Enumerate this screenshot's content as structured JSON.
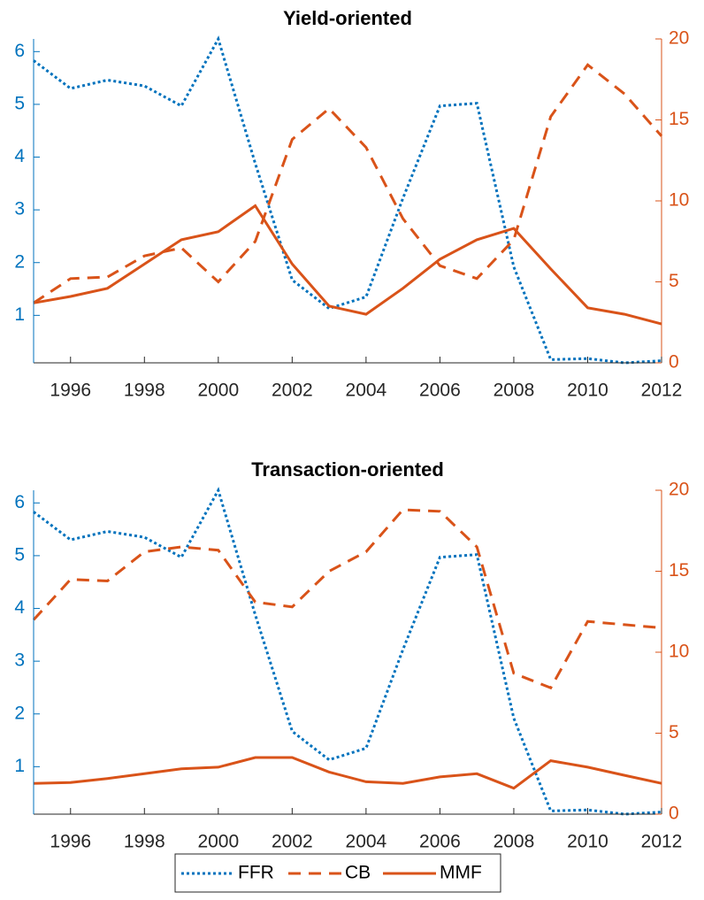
{
  "chart_data": [
    {
      "type": "line",
      "title": "Yield-oriented",
      "x": [
        1995,
        1996,
        1997,
        1998,
        1999,
        2000,
        2001,
        2002,
        2003,
        2004,
        2005,
        2006,
        2007,
        2008,
        2009,
        2010,
        2011,
        2012
      ],
      "xlim": [
        1995,
        2012
      ],
      "xticks": [
        1996,
        1998,
        2000,
        2002,
        2004,
        2006,
        2008,
        2010,
        2012
      ],
      "ylim": [
        0.1,
        6.24
      ],
      "yticks": [
        1,
        2,
        3,
        4,
        5,
        6
      ],
      "ycolor": "#0072BD",
      "y2lim": [
        0,
        20
      ],
      "y2ticks": [
        0,
        5,
        10,
        15,
        20
      ],
      "y2color": "#D95319",
      "series": [
        {
          "name": "FFR",
          "color": "#0072BD",
          "style": "dotted",
          "axis": "y",
          "values": [
            5.83,
            5.3,
            5.46,
            5.35,
            4.97,
            6.24,
            3.88,
            1.67,
            1.13,
            1.35,
            3.22,
            4.97,
            5.02,
            1.92,
            0.16,
            0.18,
            0.1,
            0.14
          ]
        },
        {
          "name": "CB",
          "color": "#D95319",
          "style": "dashed",
          "axis": "y2",
          "values": [
            3.7,
            5.2,
            5.3,
            6.6,
            7.1,
            5.0,
            7.5,
            13.8,
            15.7,
            13.3,
            8.9,
            6.0,
            5.2,
            7.6,
            15.2,
            18.4,
            16.6,
            14.0
          ]
        },
        {
          "name": "MMF",
          "color": "#D95319",
          "style": "solid",
          "axis": "y2",
          "values": [
            3.7,
            4.1,
            4.6,
            6.1,
            7.6,
            8.1,
            9.7,
            6.1,
            3.5,
            3.0,
            4.6,
            6.4,
            7.6,
            8.3,
            5.8,
            3.4,
            3.0,
            2.4
          ]
        }
      ]
    },
    {
      "type": "line",
      "title": "Transaction-oriented",
      "x": [
        1995,
        1996,
        1997,
        1998,
        1999,
        2000,
        2001,
        2002,
        2003,
        2004,
        2005,
        2006,
        2007,
        2008,
        2009,
        2010,
        2011,
        2012
      ],
      "xlim": [
        1995,
        2012
      ],
      "xticks": [
        1996,
        1998,
        2000,
        2002,
        2004,
        2006,
        2008,
        2010,
        2012
      ],
      "ylim": [
        0.1,
        6.24
      ],
      "yticks": [
        1,
        2,
        3,
        4,
        5,
        6
      ],
      "ycolor": "#0072BD",
      "y2lim": [
        0,
        20
      ],
      "y2ticks": [
        0,
        5,
        10,
        15,
        20
      ],
      "y2color": "#D95319",
      "series": [
        {
          "color": "#0072BD",
          "style": "dotted",
          "axis": "y",
          "values": [
            5.83,
            5.3,
            5.46,
            5.35,
            4.97,
            6.24,
            3.88,
            1.67,
            1.13,
            1.35,
            3.22,
            4.97,
            5.02,
            1.92,
            0.16,
            0.18,
            0.1,
            0.14
          ]
        },
        {
          "color": "#D95319",
          "style": "dashed",
          "axis": "y2",
          "values": [
            12.0,
            14.5,
            14.4,
            16.2,
            16.5,
            16.3,
            13.1,
            12.8,
            15.0,
            16.2,
            18.8,
            18.7,
            16.5,
            8.7,
            7.8,
            11.9,
            11.7,
            11.5
          ]
        },
        {
          "color": "#D95319",
          "style": "solid",
          "axis": "y2",
          "values": [
            1.9,
            1.95,
            2.2,
            2.5,
            2.8,
            2.9,
            3.5,
            3.5,
            2.6,
            2.0,
            1.9,
            2.3,
            2.5,
            1.6,
            3.3,
            2.9,
            2.4,
            1.9
          ]
        }
      ]
    }
  ]
}
